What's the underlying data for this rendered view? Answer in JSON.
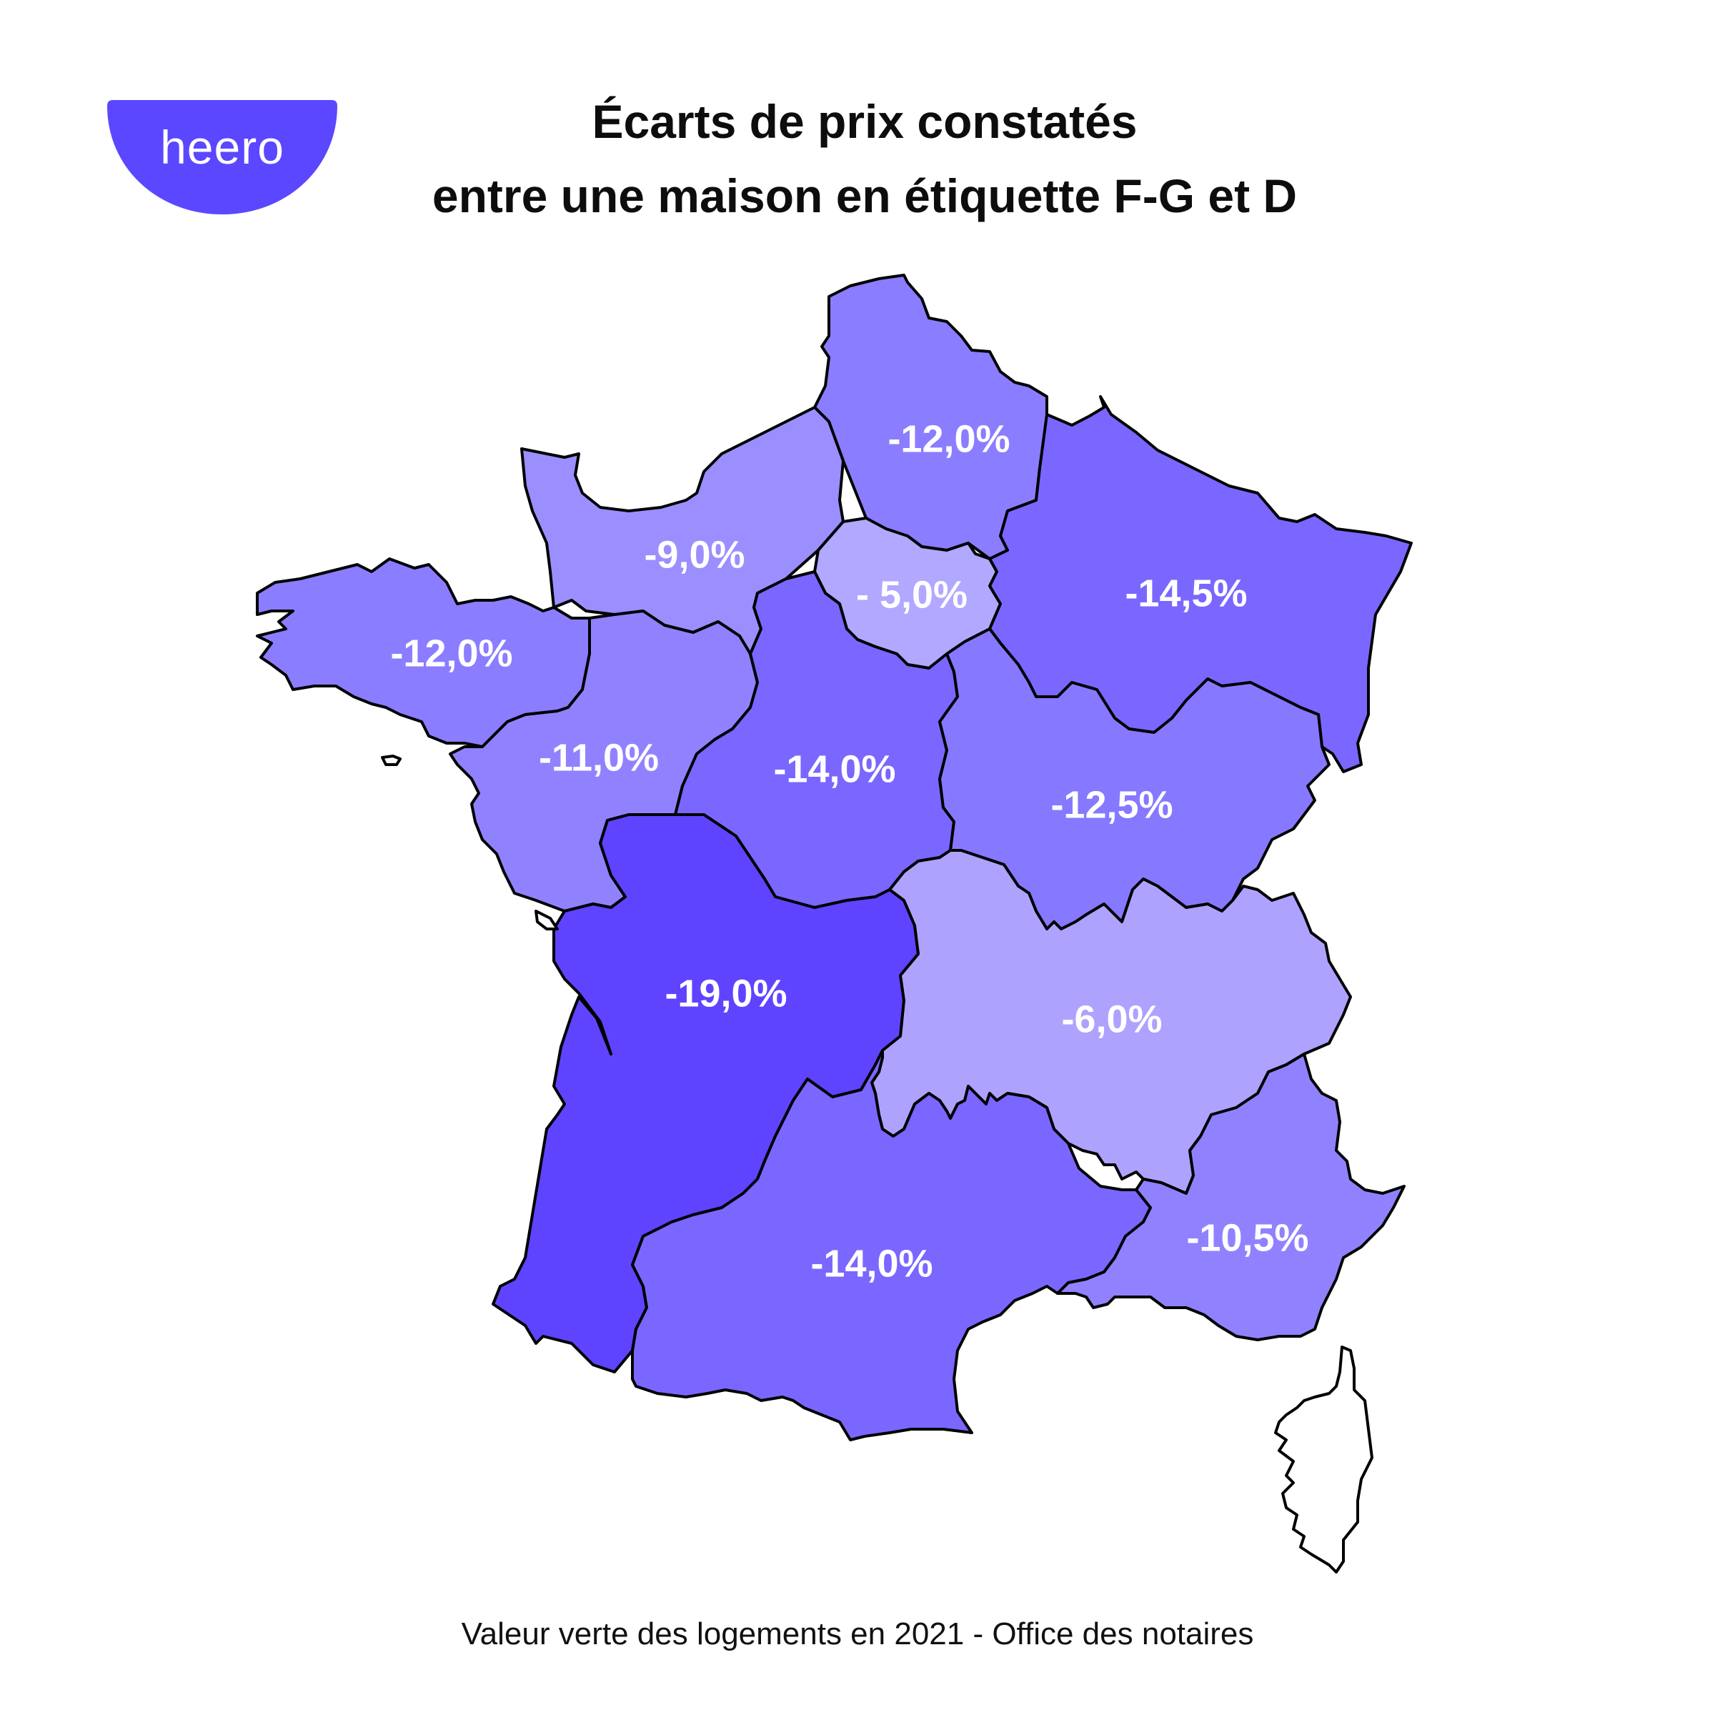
{
  "brand": {
    "name": "heero",
    "color": "#5b47ff"
  },
  "title": {
    "line1": "Écarts de prix constatés",
    "line2": "entre une maison en étiquette F-G et D"
  },
  "regions": [
    {
      "id": "hauts-de-france",
      "value": "-12,0%",
      "color": "#8b7dff"
    },
    {
      "id": "normandie",
      "value": "-9,0%",
      "color": "#9b8fff"
    },
    {
      "id": "ile-de-france",
      "value": "- 5,0%",
      "color": "#b1a8ff"
    },
    {
      "id": "grand-est",
      "value": "-14,5%",
      "color": "#7a67ff"
    },
    {
      "id": "bretagne",
      "value": "-12,0%",
      "color": "#8b7dff"
    },
    {
      "id": "pays-de-la-loire",
      "value": "-11,0%",
      "color": "#9082ff"
    },
    {
      "id": "centre-val-de-loire",
      "value": "-14,0%",
      "color": "#7a67ff"
    },
    {
      "id": "bourgogne-franche-comte",
      "value": "-12,5%",
      "color": "#8679ff"
    },
    {
      "id": "nouvelle-aquitaine",
      "value": "-19,0%",
      "color": "#5f44ff"
    },
    {
      "id": "auvergne-rhone-alpes",
      "value": "-6,0%",
      "color": "#aea2ff"
    },
    {
      "id": "occitanie",
      "value": "-14,0%",
      "color": "#7a67ff"
    },
    {
      "id": "provence-alpes-cote-dazur",
      "value": "-10,5%",
      "color": "#9082ff"
    },
    {
      "id": "corse",
      "value": "",
      "color": "#ffffff"
    }
  ],
  "source": "Valeur verte des logements en 2021 - Office des notaires"
}
